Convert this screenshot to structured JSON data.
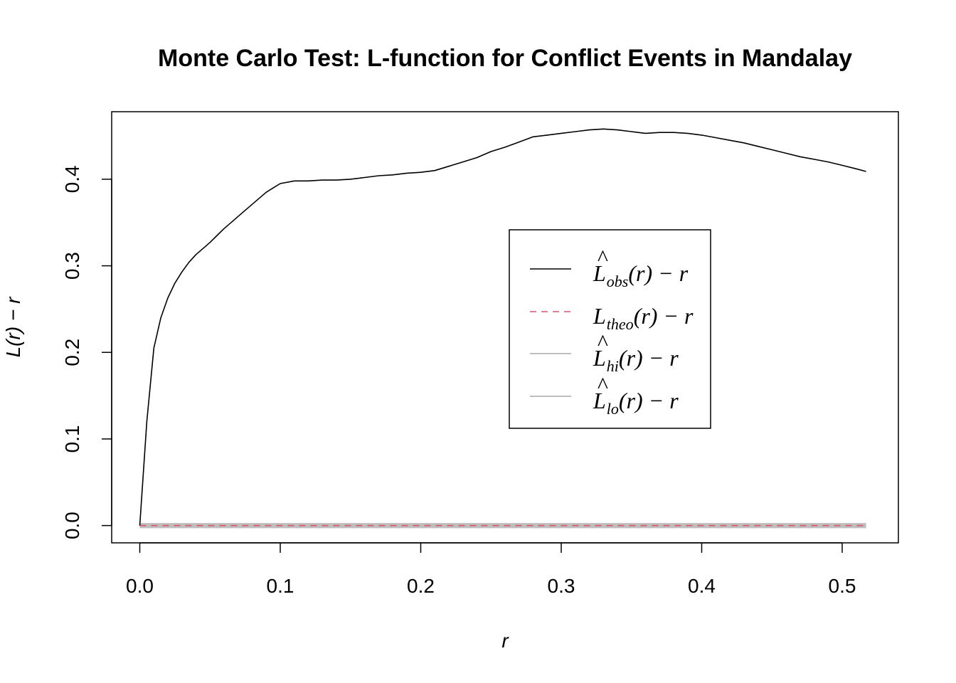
{
  "chart_data": {
    "type": "line",
    "title": "Monte Carlo Test: L-function for Conflict Events in Mandalay",
    "xlabel": "r",
    "ylabel": "L(r) − r",
    "xlim": [
      -0.02,
      0.54
    ],
    "ylim": [
      -0.02,
      0.478
    ],
    "xticks": [
      "0.0",
      "0.1",
      "0.2",
      "0.3",
      "0.4",
      "0.5"
    ],
    "yticks": [
      "0.0",
      "0.1",
      "0.2",
      "0.3",
      "0.4"
    ],
    "grid": false,
    "legend_position": "center-right",
    "series": [
      {
        "name": "L̂obs(r) − r",
        "legend_main": "L",
        "legend_hat": "^",
        "legend_sub": "obs",
        "legend_tail": "(r) − r",
        "color": "#000000",
        "dash": "solid",
        "x": [
          0.0,
          0.005,
          0.01,
          0.015,
          0.02,
          0.025,
          0.03,
          0.035,
          0.04,
          0.045,
          0.05,
          0.055,
          0.06,
          0.065,
          0.07,
          0.075,
          0.08,
          0.085,
          0.09,
          0.095,
          0.1,
          0.11,
          0.12,
          0.13,
          0.14,
          0.15,
          0.16,
          0.17,
          0.18,
          0.19,
          0.2,
          0.21,
          0.22,
          0.23,
          0.24,
          0.25,
          0.26,
          0.27,
          0.28,
          0.29,
          0.3,
          0.31,
          0.32,
          0.33,
          0.34,
          0.35,
          0.36,
          0.37,
          0.38,
          0.39,
          0.4,
          0.41,
          0.42,
          0.43,
          0.44,
          0.45,
          0.46,
          0.47,
          0.48,
          0.49,
          0.5,
          0.51,
          0.517
        ],
        "y": [
          0.0,
          0.12,
          0.205,
          0.24,
          0.263,
          0.28,
          0.293,
          0.304,
          0.313,
          0.32,
          0.327,
          0.335,
          0.343,
          0.35,
          0.357,
          0.364,
          0.371,
          0.378,
          0.385,
          0.39,
          0.395,
          0.398,
          0.398,
          0.399,
          0.399,
          0.4,
          0.402,
          0.404,
          0.405,
          0.407,
          0.408,
          0.41,
          0.415,
          0.42,
          0.425,
          0.432,
          0.437,
          0.443,
          0.449,
          0.451,
          0.453,
          0.455,
          0.457,
          0.458,
          0.457,
          0.455,
          0.453,
          0.454,
          0.454,
          0.453,
          0.451,
          0.448,
          0.445,
          0.442,
          0.438,
          0.434,
          0.43,
          0.426,
          0.423,
          0.42,
          0.416,
          0.412,
          0.409
        ]
      },
      {
        "name": "Ltheo(r) − r",
        "legend_main": "L",
        "legend_hat": "",
        "legend_sub": "theo",
        "legend_tail": "(r) − r",
        "color": "#df536b",
        "dash": "dashed",
        "x": [
          0.0,
          0.517
        ],
        "y": [
          0.0,
          0.0
        ]
      },
      {
        "name": "L̂hi(r) − r",
        "legend_main": "L",
        "legend_hat": "^",
        "legend_sub": "hi",
        "legend_tail": "(r) − r",
        "color": "#bebebe",
        "dash": "solid",
        "x": [
          0.0,
          0.517
        ],
        "y": [
          0.0,
          0.0
        ]
      },
      {
        "name": "L̂lo(r) − r",
        "legend_main": "L",
        "legend_hat": "^",
        "legend_sub": "lo",
        "legend_tail": "(r) − r",
        "color": "#bebebe",
        "dash": "solid",
        "x": [
          0.0,
          0.517
        ],
        "y": [
          0.0,
          0.0
        ]
      }
    ]
  }
}
